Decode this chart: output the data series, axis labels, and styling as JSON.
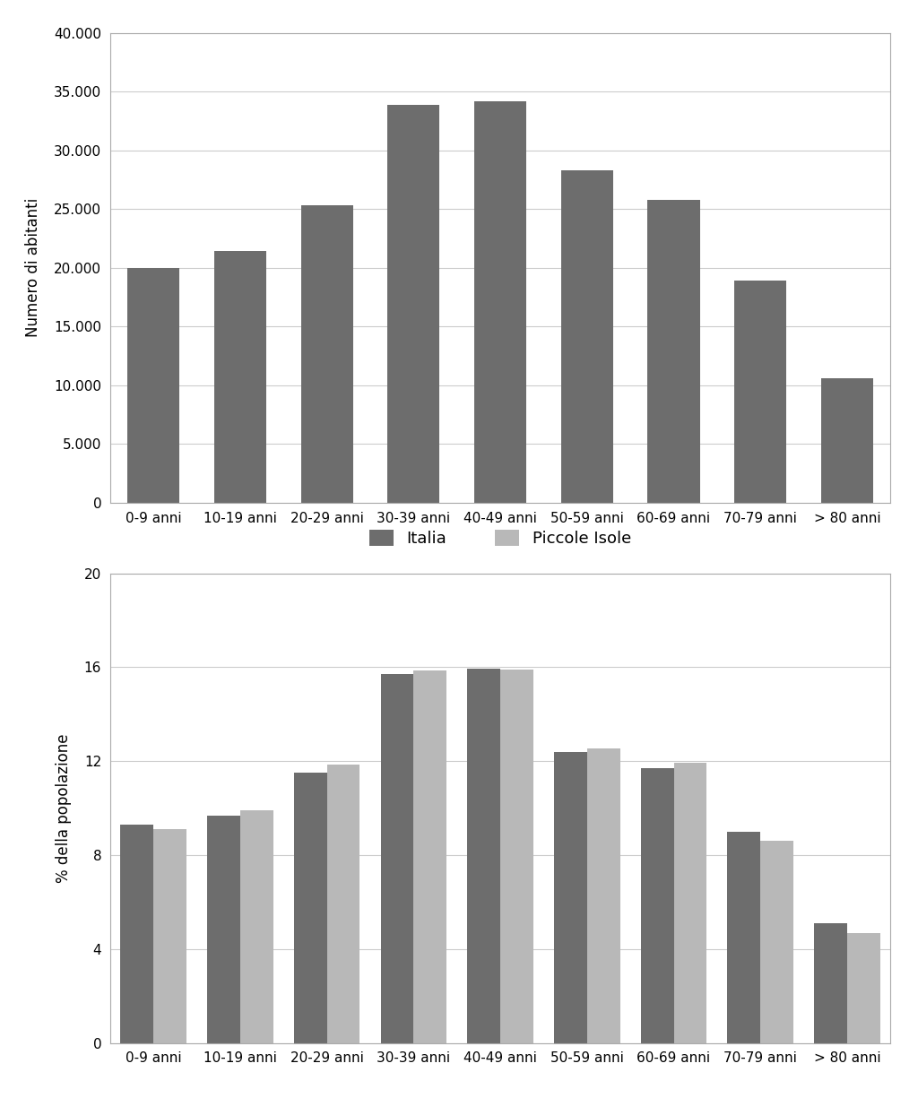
{
  "categories": [
    "0-9 anni",
    "10-19 anni",
    "20-29 anni",
    "30-39 anni",
    "40-49 anni",
    "50-59 anni",
    "60-69 anni",
    "70-79 anni",
    "> 80 anni"
  ],
  "chart1": {
    "values_italia": [
      20000,
      21400,
      25300,
      33900,
      34200,
      28300,
      25800,
      18900,
      10600
    ],
    "bar_color": "#6d6d6d",
    "ylabel": "Numero di abitanti",
    "ylim": [
      0,
      40000
    ],
    "yticks": [
      0,
      5000,
      10000,
      15000,
      20000,
      25000,
      30000,
      35000,
      40000
    ]
  },
  "chart2": {
    "values_italia": [
      9.3,
      9.7,
      11.5,
      15.7,
      15.95,
      12.4,
      11.7,
      9.0,
      5.1
    ],
    "values_piccole_isole": [
      9.1,
      9.9,
      11.85,
      15.85,
      15.9,
      12.55,
      11.95,
      8.6,
      4.7
    ],
    "color_italia": "#6d6d6d",
    "color_piccole_isole": "#b8b8b8",
    "ylabel": "% della popolazione",
    "ylim": [
      0,
      20
    ],
    "yticks": [
      0,
      4,
      8,
      12,
      16,
      20
    ]
  },
  "legend": {
    "italia_label": "Italia",
    "piccole_isole_label": "Piccole Isole",
    "color_italia": "#6d6d6d",
    "color_piccole_isole": "#b8b8b8"
  },
  "background_color": "#ffffff",
  "grid_color": "#cccccc"
}
